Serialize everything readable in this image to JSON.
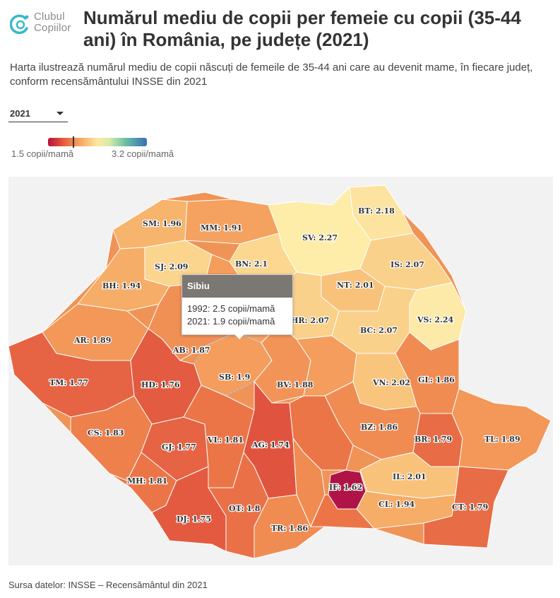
{
  "brand": {
    "line1": "Clubul",
    "line2": "Copiilor"
  },
  "title": "Numărul mediu de copii per femeie cu copii (35-44 ani) în România, pe județe (2021)",
  "subtitle": "Harta ilustrează numărul mediu de copii născuți de femeile de 35-44 ani care au devenit mame, în fiecare județ, conform recensământului INSSE din 2021",
  "year_select": {
    "value": "2021"
  },
  "legend": {
    "min_label": "1.5 copii/mamă",
    "max_label": "3.2 copii/mamă",
    "min": 1.5,
    "max": 3.2,
    "marker_value": 1.9
  },
  "colors": {
    "c162": "#b01447",
    "c174": "#e0543f",
    "c175": "#e35a40",
    "c176": "#e35b40",
    "c177": "#e66343",
    "c179": "#e86c45",
    "c180": "#ea7147",
    "c181": "#ec7548",
    "c183": "#ee804c",
    "c186": "#f08c52",
    "c187": "#f19055",
    "c188": "#f29457",
    "c189": "#f39859",
    "c190": "#f49d5c",
    "c191": "#f5a15f",
    "c194": "#f6ad68",
    "c196": "#f7b46d",
    "c201": "#f9c27a",
    "c202": "#f9c47c",
    "c207": "#fad18a",
    "c209": "#fbd58e",
    "c210": "#fbd790",
    "c218": "#fce3a0",
    "c224": "#fdeaa8",
    "c227": "#fdeda9",
    "background": "#f2f2f2",
    "tooltip_header": "#7b7773"
  },
  "map": {
    "counties": [
      {
        "code": "SM",
        "label": "SM: 1.96",
        "value": 1.96
      },
      {
        "code": "MM",
        "label": "MM: 1.91",
        "value": 1.91
      },
      {
        "code": "BT",
        "label": "BT: 2.18",
        "value": 2.18
      },
      {
        "code": "SV",
        "label": "SV: 2.27",
        "value": 2.27
      },
      {
        "code": "BN",
        "label": "BN: 2.1",
        "value": 2.1
      },
      {
        "code": "SJ",
        "label": "SJ: 2.09",
        "value": 2.09
      },
      {
        "code": "IS",
        "label": "IS: 2.07",
        "value": 2.07
      },
      {
        "code": "BH",
        "label": "BH: 1.94",
        "value": 1.94
      },
      {
        "code": "NT",
        "label": "NT: 2.01",
        "value": 2.01
      },
      {
        "code": "HR",
        "label": "HR: 2.07",
        "value": 2.07
      },
      {
        "code": "VS",
        "label": "VS: 2.24",
        "value": 2.24
      },
      {
        "code": "BC",
        "label": "BC: 2.07",
        "value": 2.07
      },
      {
        "code": "AR",
        "label": "AR: 1.89",
        "value": 1.89
      },
      {
        "code": "AB",
        "label": "AB: 1.87",
        "value": 1.87
      },
      {
        "code": "SB",
        "label": "SB: 1.9",
        "value": 1.9
      },
      {
        "code": "TM",
        "label": "TM: 1.77",
        "value": 1.77
      },
      {
        "code": "HD",
        "label": "HD: 1.76",
        "value": 1.76
      },
      {
        "code": "BV",
        "label": "BV: 1.88",
        "value": 1.88
      },
      {
        "code": "VN",
        "label": "VN: 2.02",
        "value": 2.02
      },
      {
        "code": "GL",
        "label": "GL: 1.86",
        "value": 1.86
      },
      {
        "code": "CS",
        "label": "CS: 1.83",
        "value": 1.83
      },
      {
        "code": "BZ",
        "label": "BZ: 1.86",
        "value": 1.86
      },
      {
        "code": "GJ",
        "label": "GJ: 1.77",
        "value": 1.77
      },
      {
        "code": "VL",
        "label": "VL: 1.81",
        "value": 1.81
      },
      {
        "code": "AG",
        "label": "AG: 1.74",
        "value": 1.74
      },
      {
        "code": "BR",
        "label": "BR: 1.79",
        "value": 1.79
      },
      {
        "code": "TL",
        "label": "TL: 1.89",
        "value": 1.89
      },
      {
        "code": "MH",
        "label": "MH: 1.81",
        "value": 1.81
      },
      {
        "code": "IL",
        "label": "IL: 2.01",
        "value": 2.01
      },
      {
        "code": "IF",
        "label": "IF: 1.62",
        "value": 1.62
      },
      {
        "code": "CL",
        "label": "CL: 1.94",
        "value": 1.94
      },
      {
        "code": "OT",
        "label": "OT: 1.8",
        "value": 1.8
      },
      {
        "code": "CT",
        "label": "CT: 1.79",
        "value": 1.79
      },
      {
        "code": "DJ",
        "label": "DJ: 1.75",
        "value": 1.75
      },
      {
        "code": "TR",
        "label": "TR: 1.86",
        "value": 1.86
      }
    ]
  },
  "tooltip": {
    "title": "Sibiu",
    "line1": "1992: 2.5 copii/mamă",
    "line2": "2021: 1.9 copii/mamă"
  },
  "source": "Sursa datelor: INSSE – Recensământul din 2021"
}
